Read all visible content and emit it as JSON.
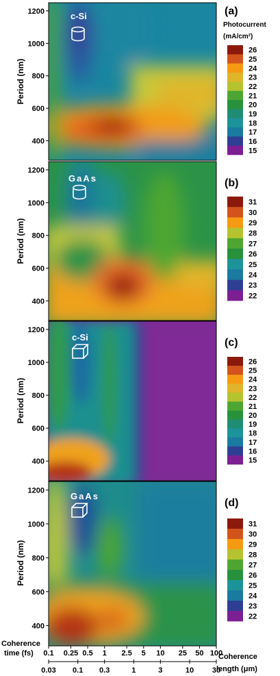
{
  "figure": {
    "ylabel": "Period (nm)",
    "bottom_axis_time_label_line1": "Coherence",
    "bottom_axis_time_label_line2": "time (fs)",
    "bottom_axis_length_label_line1": "Coherence",
    "bottom_axis_length_label_line2": "length (μm)",
    "time_ticks": [
      "0.1",
      "0.25",
      "0.5",
      "1",
      "2.5",
      "5",
      "10",
      "25",
      "50",
      "100"
    ],
    "length_ticks": [
      "0.03",
      "0.1",
      "0.3",
      "1",
      "3",
      "10",
      "30"
    ],
    "colorbar_title_line1": "Photocurrent",
    "colorbar_title_line2": "(mA/cm²)"
  },
  "chart_data": [
    {
      "type": "heatmap",
      "panel": "(a)",
      "material": "c-Si",
      "geometry": "cylinder",
      "ylabel": "Period (nm)",
      "yticks": [
        400,
        600,
        800,
        1000,
        1200
      ],
      "ylim": [
        280,
        1250
      ],
      "xscale": "log",
      "xlim": [
        0.1,
        100
      ],
      "colorbar_title": "Photocurrent (mA/cm²)",
      "colorbar_levels": [
        26,
        25,
        24,
        23,
        22,
        21,
        20,
        19,
        18,
        17,
        16,
        15
      ],
      "colorbar_colors": [
        "#8b1a0d",
        "#d2541c",
        "#f59a12",
        "#e0b52a",
        "#b4c32f",
        "#4ea632",
        "#27913c",
        "#1f8c74",
        "#1c9399",
        "#1a7aa0",
        "#2e3f93",
        "#7c1f93"
      ]
    },
    {
      "type": "heatmap",
      "panel": "(b)",
      "material": "GaAs",
      "geometry": "cylinder",
      "ylabel": "Period (nm)",
      "yticks": [
        400,
        600,
        800,
        1000,
        1200
      ],
      "ylim": [
        280,
        1250
      ],
      "xscale": "log",
      "xlim": [
        0.1,
        100
      ],
      "colorbar_levels": [
        31,
        30,
        29,
        28,
        27,
        26,
        25,
        24,
        23,
        22
      ],
      "colorbar_colors": [
        "#8b1a0d",
        "#d2541c",
        "#f59a12",
        "#b4c32f",
        "#4ea632",
        "#27913c",
        "#1c9399",
        "#1a7aa0",
        "#2e3f93",
        "#7c1f93"
      ]
    },
    {
      "type": "heatmap",
      "panel": "(c)",
      "material": "c-Si",
      "geometry": "cube",
      "ylabel": "Period (nm)",
      "yticks": [
        400,
        600,
        800,
        1000,
        1200
      ],
      "ylim": [
        280,
        1250
      ],
      "xscale": "log",
      "xlim": [
        0.1,
        100
      ],
      "colorbar_levels": [
        26,
        25,
        24,
        23,
        22,
        21,
        20,
        19,
        18,
        17,
        16,
        15
      ],
      "colorbar_colors": [
        "#8b1a0d",
        "#d2541c",
        "#f59a12",
        "#e0b52a",
        "#b4c32f",
        "#4ea632",
        "#27913c",
        "#1f8c74",
        "#1c9399",
        "#1a7aa0",
        "#2e3f93",
        "#7c1f93"
      ]
    },
    {
      "type": "heatmap",
      "panel": "(d)",
      "material": "GaAs",
      "geometry": "cube",
      "ylabel": "Period (nm)",
      "yticks": [
        400,
        600,
        800,
        1000,
        1200
      ],
      "ylim": [
        280,
        1250
      ],
      "xscale": "log",
      "xlim": [
        0.1,
        100
      ],
      "colorbar_levels": [
        31,
        30,
        29,
        28,
        27,
        26,
        25,
        24,
        23,
        22
      ],
      "colorbar_colors": [
        "#8b1a0d",
        "#d2541c",
        "#f59a12",
        "#b4c32f",
        "#4ea632",
        "#27913c",
        "#1c9399",
        "#1a7aa0",
        "#2e3f93",
        "#7c1f93"
      ]
    }
  ]
}
